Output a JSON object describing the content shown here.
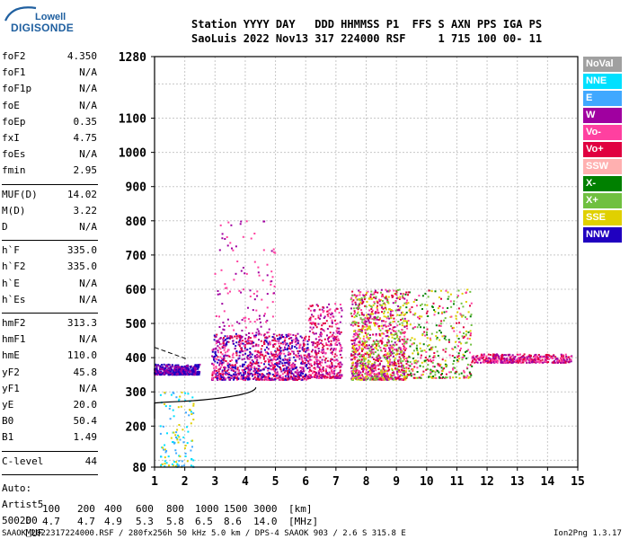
{
  "logo": {
    "line1": "Lowell",
    "line2": "DIGISONDE"
  },
  "header": {
    "line1": "Station YYYY DAY   DDD HHMMSS P1  FFS S AXN PPS IGA PS",
    "line2": "SaoLuis 2022 Nov13 317 224000 RSF     1 715 100 00- 11"
  },
  "scaled_params": [
    {
      "label": "foF2",
      "value": "4.350"
    },
    {
      "label": "foF1",
      "value": "N/A"
    },
    {
      "label": "foF1p",
      "value": "N/A"
    },
    {
      "label": "foE",
      "value": "N/A"
    },
    {
      "label": "foEp",
      "value": "0.35"
    },
    {
      "label": "fxI",
      "value": "4.75"
    },
    {
      "label": "foEs",
      "value": "N/A"
    },
    {
      "label": "fmin",
      "value": "2.95"
    },
    {
      "label": "MUF(D)",
      "value": "14.02"
    },
    {
      "label": "M(D)",
      "value": "3.22"
    },
    {
      "label": "D",
      "value": "N/A"
    },
    {
      "label": "h`F",
      "value": "335.0"
    },
    {
      "label": "h`F2",
      "value": "335.0"
    },
    {
      "label": "h`E",
      "value": "N/A"
    },
    {
      "label": "h`Es",
      "value": "N/A"
    },
    {
      "label": "hmF2",
      "value": "313.3"
    },
    {
      "label": "hmF1",
      "value": "N/A"
    },
    {
      "label": "hmE",
      "value": "110.0"
    },
    {
      "label": "yF2",
      "value": "45.8"
    },
    {
      "label": "yF1",
      "value": "N/A"
    },
    {
      "label": "yE",
      "value": "20.0"
    },
    {
      "label": "B0",
      "value": "50.4"
    },
    {
      "label": "B1",
      "value": "1.49"
    },
    {
      "label": "C-level",
      "value": "44"
    }
  ],
  "autoscale": {
    "line1": "Auto:",
    "line2": "Artist5",
    "line3": "500200"
  },
  "legend": [
    {
      "label": "NoVal",
      "color": "#a0a0a0"
    },
    {
      "label": "NNE",
      "color": "#00e0ff"
    },
    {
      "label": "E",
      "color": "#40a8ff"
    },
    {
      "label": "W",
      "color": "#a000a0"
    },
    {
      "label": "Vo-",
      "color": "#ff40a0"
    },
    {
      "label": "Vo+",
      "color": "#e00040"
    },
    {
      "label": "SSW",
      "color": "#ffb0b0"
    },
    {
      "label": "X-",
      "color": "#008000"
    },
    {
      "label": "X+",
      "color": "#70c040"
    },
    {
      "label": "SSE",
      "color": "#e0d000"
    },
    {
      "label": "NNW",
      "color": "#2000c0"
    }
  ],
  "chart_data": {
    "type": "scatter",
    "xlim": [
      1,
      15
    ],
    "ylim": [
      80,
      1280
    ],
    "x_ticks": [
      1,
      2,
      3,
      4,
      5,
      6,
      7,
      8,
      9,
      10,
      11,
      12,
      13,
      14,
      15
    ],
    "y_ticks": [
      80,
      200,
      300,
      400,
      500,
      600,
      700,
      800,
      900,
      1000,
      1100,
      1280
    ],
    "grid": true,
    "clusters": [
      {
        "x": [
          2.9,
          6.1
        ],
        "y": [
          335,
          470
        ],
        "density": "high",
        "colors": [
          "#a000a0",
          "#ff40a0",
          "#e00040",
          "#2000c0"
        ]
      },
      {
        "x": [
          3.0,
          5.0
        ],
        "y": [
          470,
          800
        ],
        "density": "sparse",
        "colors": [
          "#a000a0",
          "#ff40a0"
        ]
      },
      {
        "x": [
          6.1,
          7.2
        ],
        "y": [
          340,
          560
        ],
        "density": "medium",
        "colors": [
          "#ff40a0",
          "#e00040",
          "#a000a0"
        ]
      },
      {
        "x": [
          7.5,
          9.3
        ],
        "y": [
          335,
          600
        ],
        "density": "high",
        "colors": [
          "#ff40a0",
          "#e00040",
          "#a000a0",
          "#70c040",
          "#e0d000"
        ]
      },
      {
        "x": [
          9.3,
          11.5
        ],
        "y": [
          340,
          600
        ],
        "density": "medium",
        "colors": [
          "#ff40a0",
          "#e00040",
          "#70c040",
          "#e0d000",
          "#008000"
        ]
      },
      {
        "x": [
          11.5,
          14.8
        ],
        "y": [
          385,
          410
        ],
        "density": "medium",
        "colors": [
          "#ff40a0",
          "#e00040",
          "#a000a0"
        ]
      },
      {
        "x": [
          1.0,
          2.5
        ],
        "y": [
          350,
          380
        ],
        "density": "medium",
        "colors": [
          "#2000c0",
          "#a000a0"
        ]
      },
      {
        "x": [
          1.2,
          2.3
        ],
        "y": [
          80,
          300
        ],
        "density": "sparse",
        "colors": [
          "#00e0ff",
          "#40a8ff",
          "#e0d000"
        ]
      }
    ]
  },
  "footer": {
    "d_label": "D",
    "d_values": [
      "100",
      "200",
      "400",
      "600",
      "800",
      "1000",
      "1500",
      "3000"
    ],
    "d_unit": "[km]",
    "muf_label": "MUF",
    "muf_values": [
      "4.7",
      "4.7",
      "4.9",
      "5.3",
      "5.8",
      "6.5",
      "8.6",
      "14.0"
    ],
    "muf_unit": "[MHz]",
    "file_info": "SAAOK_2022317224000.RSF / 280fx256h 50 kHz 5.0 km / DPS-4 SAAOK 903 / 2.6 S 315.8 E",
    "version": "Ion2Png 1.3.17"
  }
}
